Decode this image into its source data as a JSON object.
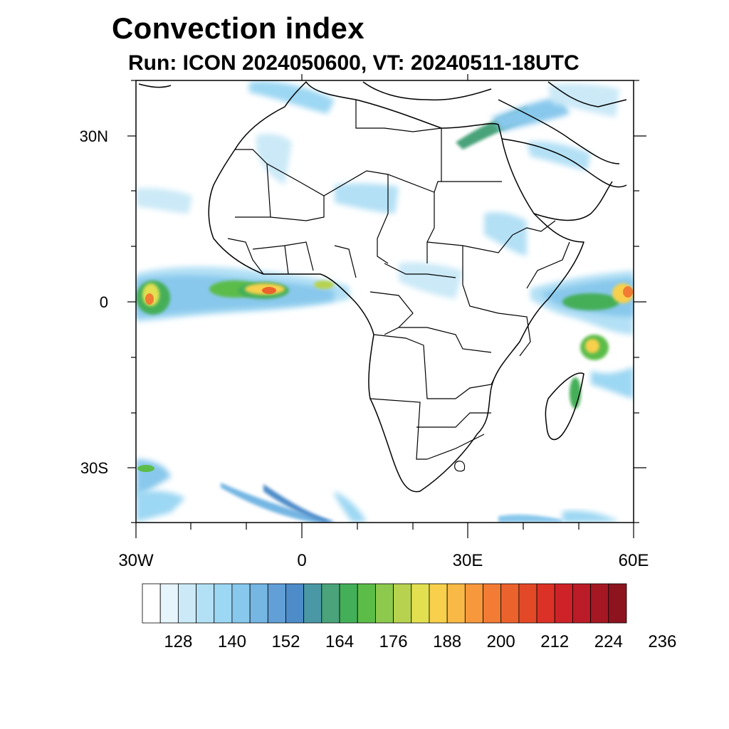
{
  "title": "Convection index",
  "subtitle": "Run: ICON 2024050600,  VT: 20240511-18UTC",
  "map": {
    "lon_range": [
      -30,
      60
    ],
    "lat_range": [
      -40,
      40
    ],
    "lat_labels": [
      {
        "lat": 30,
        "text": "30N"
      },
      {
        "lat": 0,
        "text": "0"
      },
      {
        "lat": -30,
        "text": "30S"
      }
    ],
    "lon_labels": [
      {
        "lon": -30,
        "text": "30W"
      },
      {
        "lon": 0,
        "text": "0"
      },
      {
        "lon": 30,
        "text": "30E"
      },
      {
        "lon": 60,
        "text": "60E"
      }
    ]
  },
  "colorbar": {
    "labels": [
      "128",
      "140",
      "152",
      "164",
      "176",
      "188",
      "200",
      "212",
      "224",
      "236"
    ],
    "colors": [
      "#ffffff",
      "#e6f4fb",
      "#cbe9f7",
      "#b3e0f5",
      "#9cd7f3",
      "#88c8ec",
      "#75b6e3",
      "#619fd6",
      "#4e8cc9",
      "#4a98a6",
      "#4aa37a",
      "#44af59",
      "#5cbc48",
      "#8dc94c",
      "#b7d24e",
      "#e2e051",
      "#f8d04c",
      "#f9b947",
      "#f7983d",
      "#f27c34",
      "#ec622c",
      "#e44927",
      "#dc3127",
      "#cd2228",
      "#bb1c27",
      "#a51823",
      "#8d141e"
    ]
  },
  "convection_regions": [
    {
      "name": "atlantic-equatorial-band",
      "lon": -20,
      "lat": 2,
      "level": "high"
    },
    {
      "name": "gulf-of-guinea",
      "lon": -5,
      "lat": 1,
      "level": "very-high"
    },
    {
      "name": "indian-ocean-band",
      "lon": 52,
      "lat": 0,
      "level": "high"
    },
    {
      "name": "madagascar-east",
      "lon": 50,
      "lat": -16,
      "level": "medium"
    },
    {
      "name": "red-sea-mediterranean",
      "lon": 35,
      "lat": 32,
      "level": "low"
    }
  ]
}
